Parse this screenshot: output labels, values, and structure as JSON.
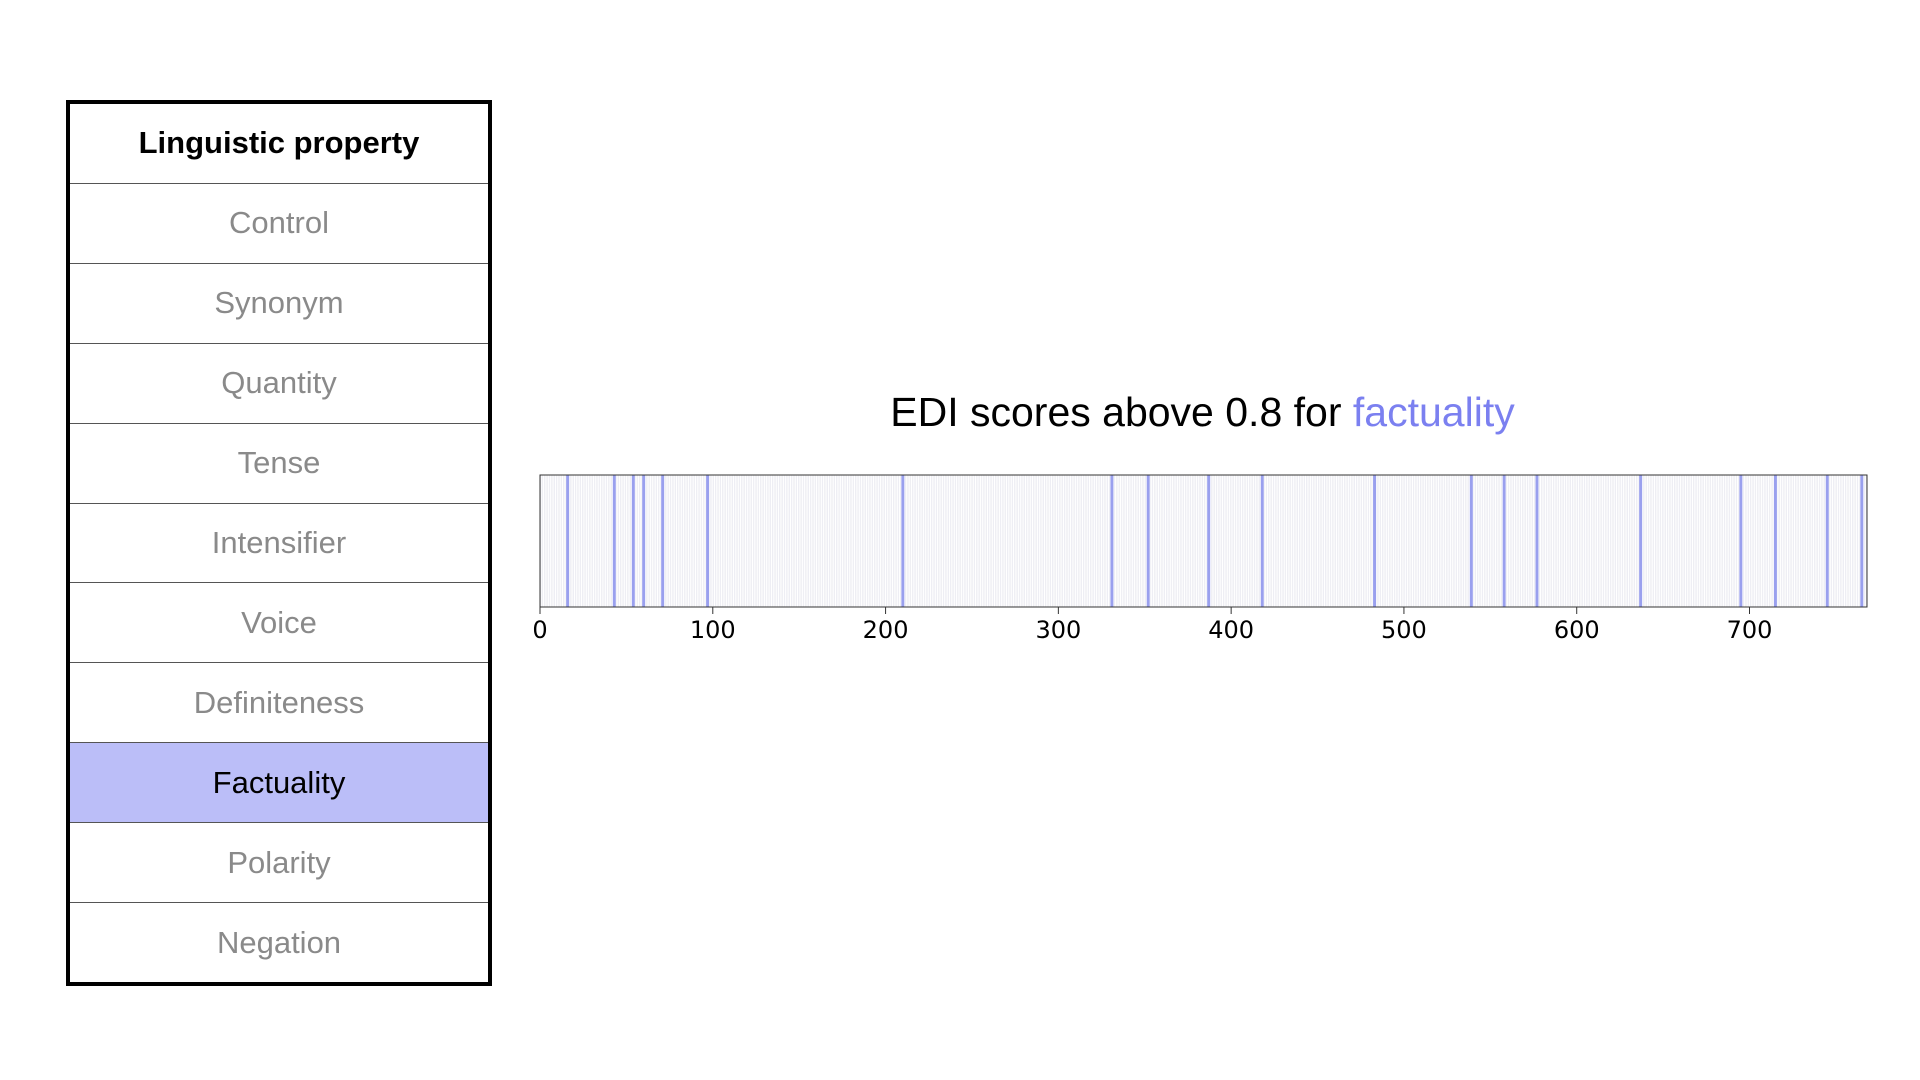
{
  "table": {
    "header": "Linguistic property",
    "rows": [
      "Control",
      "Synonym",
      "Quantity",
      "Tense",
      "Intensifier",
      "Voice",
      "Definiteness",
      "Factuality",
      "Polarity",
      "Negation"
    ],
    "selected": "Factuality",
    "selected_color": "#bbbef8",
    "text_color": "#8a8a8a"
  },
  "chart_data": {
    "type": "bar",
    "title": "EDI scores above 0.8 for",
    "title_highlight": "factuality",
    "highlight_color": "#7b80f0",
    "line_color": "#9aa0ee",
    "background_line_color": "#e4e4ec",
    "xlim": [
      0,
      768
    ],
    "xticks": [
      0,
      100,
      200,
      300,
      400,
      500,
      600,
      700
    ],
    "x": [
      16,
      43,
      54,
      60,
      71,
      97,
      210,
      331,
      352,
      387,
      418,
      483,
      539,
      558,
      577,
      637,
      695,
      715,
      745,
      765
    ]
  }
}
